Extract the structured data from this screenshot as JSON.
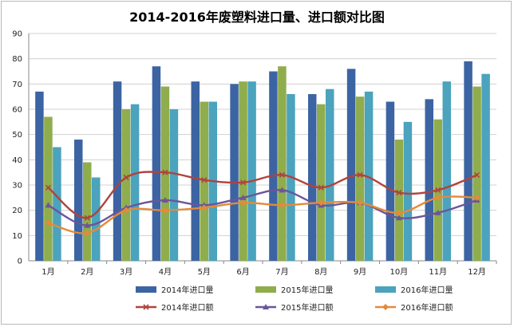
{
  "chart_data": {
    "type": "bar",
    "title": "2014-2016年废塑料进口量、进口额对比图",
    "categories": [
      "1月",
      "2月",
      "3月",
      "4月",
      "5月",
      "6月",
      "7月",
      "8月",
      "9月",
      "10月",
      "11月",
      "12月"
    ],
    "ylim": [
      0,
      90
    ],
    "yticks": [
      0,
      10,
      20,
      30,
      40,
      50,
      60,
      70,
      80,
      90
    ],
    "grid": true,
    "legend_position": "bottom",
    "bar_series": [
      {
        "name": "2014年进口量",
        "color": "#3c64a3",
        "values": [
          67,
          48,
          71,
          77,
          71,
          70,
          75,
          66,
          76,
          63,
          64,
          79
        ]
      },
      {
        "name": "2015年进口量",
        "color": "#8fad4d",
        "values": [
          57,
          39,
          60,
          69,
          63,
          71,
          77,
          62,
          65,
          48,
          56,
          69
        ]
      },
      {
        "name": "2016年进口量",
        "color": "#4ba3bd",
        "values": [
          45,
          33,
          62,
          60,
          63,
          71,
          66,
          68,
          67,
          55,
          71,
          74
        ]
      }
    ],
    "line_series": [
      {
        "name": "2014年进口额",
        "color": "#b0433e",
        "marker": "x",
        "values": [
          29,
          17,
          33,
          35,
          32,
          31,
          34,
          29,
          34,
          27,
          28,
          34
        ]
      },
      {
        "name": "2015年进口额",
        "color": "#6c559a",
        "marker": "triangle",
        "values": [
          22,
          14,
          21,
          24,
          22,
          25,
          28,
          22,
          23,
          17,
          19,
          24
        ]
      },
      {
        "name": "2016年进口额",
        "color": "#e48a3a",
        "marker": "diamond",
        "values": [
          15,
          11,
          20,
          20,
          21,
          23,
          22,
          23,
          23,
          19,
          25,
          25
        ]
      }
    ]
  }
}
